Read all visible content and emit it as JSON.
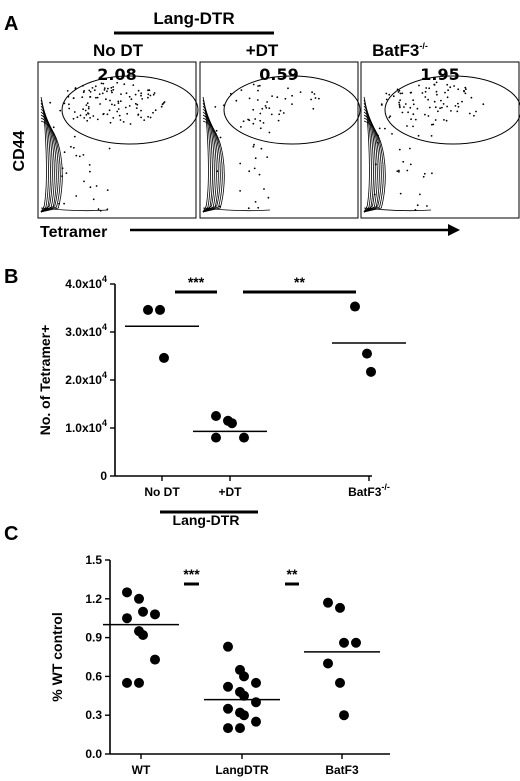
{
  "panel_a": {
    "letter": "A",
    "group_label": "Lang-DTR",
    "ylabel": "CD44",
    "xlabel": "Tetramer",
    "plots": [
      {
        "title": "No DT",
        "percent": "2.08"
      },
      {
        "title": "+DT",
        "percent": "0.59"
      },
      {
        "title": "BatF3",
        "title_sup": "-/-",
        "percent": "1.95"
      }
    ]
  },
  "panel_b_letter": "B",
  "panel_b_group_label": "Lang-DTR",
  "panel_c_letter": "C",
  "chart_data": [
    {
      "type": "scatter",
      "ylabel": "No. of Tetramer+",
      "ylim": [
        0,
        40000
      ],
      "yticks": [
        {
          "value": 0,
          "label": "0"
        },
        {
          "value": 10000,
          "label": "1.0x10",
          "sup": "4"
        },
        {
          "value": 20000,
          "label": "2.0x10",
          "sup": "4"
        },
        {
          "value": 30000,
          "label": "3.0x10",
          "sup": "4"
        },
        {
          "value": 40000,
          "label": "4.0x10",
          "sup": "4"
        }
      ],
      "categories": [
        {
          "label": "No DT",
          "mean": 31200,
          "points": [
            34600,
            34600,
            24600
          ]
        },
        {
          "label": "+DT",
          "mean": 9300,
          "points": [
            12500,
            11500,
            11000,
            8000,
            8000
          ]
        },
        {
          "label": "BatF3",
          "label_sup": "-/-",
          "mean": 27700,
          "points": [
            35300,
            25500,
            21700
          ]
        }
      ],
      "significance": [
        {
          "label": "***",
          "from": 0,
          "to": 1
        },
        {
          "label": "**",
          "from": 1,
          "to": 2
        }
      ]
    },
    {
      "type": "scatter",
      "ylabel": "% WT control",
      "ylim": [
        0,
        1.5
      ],
      "yticks": [
        {
          "value": 0,
          "label": "0.0"
        },
        {
          "value": 0.3,
          "label": "0.3"
        },
        {
          "value": 0.6,
          "label": "0.6"
        },
        {
          "value": 0.9,
          "label": "0.9"
        },
        {
          "value": 1.2,
          "label": "1.2"
        },
        {
          "value": 1.5,
          "label": "1.5"
        }
      ],
      "categories": [
        {
          "label": "WT",
          "mean": 1.0,
          "points": [
            1.25,
            1.2,
            1.1,
            1.08,
            1.05,
            0.95,
            0.92,
            0.73,
            0.55,
            0.55
          ]
        },
        {
          "label": "LangDTR",
          "mean": 0.42,
          "points": [
            0.83,
            0.65,
            0.6,
            0.55,
            0.52,
            0.48,
            0.45,
            0.4,
            0.35,
            0.32,
            0.3,
            0.25,
            0.2,
            0.2
          ]
        },
        {
          "label": "BatF3",
          "mean": 0.79,
          "points": [
            1.17,
            1.13,
            0.86,
            0.86,
            0.7,
            0.55,
            0.3
          ]
        }
      ],
      "significance": [
        {
          "label": "***",
          "from": 0,
          "to": 1
        },
        {
          "label": "**",
          "from": 1,
          "to": 2
        }
      ]
    }
  ]
}
